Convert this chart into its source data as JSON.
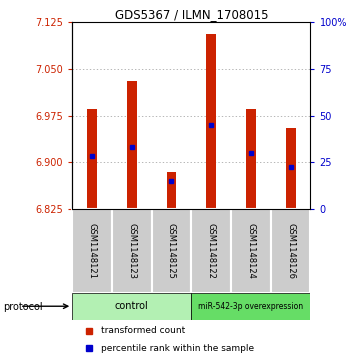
{
  "title": "GDS5367 / ILMN_1708015",
  "samples": [
    "GSM1148121",
    "GSM1148123",
    "GSM1148125",
    "GSM1148122",
    "GSM1148124",
    "GSM1148126"
  ],
  "bar_bottom": 6.825,
  "bar_tops": [
    6.985,
    7.03,
    6.885,
    7.105,
    6.985,
    6.955
  ],
  "percentile_values": [
    6.91,
    6.925,
    6.87,
    6.96,
    6.915,
    6.892
  ],
  "ylim": [
    6.825,
    7.125
  ],
  "yticks": [
    6.825,
    6.9,
    6.975,
    7.05,
    7.125
  ],
  "right_yticks": [
    0,
    25,
    50,
    75,
    100
  ],
  "groups": [
    {
      "label": "control",
      "span": [
        0,
        2
      ],
      "color": "#b3f0b3"
    },
    {
      "label": "miR-542-3p overexpression",
      "span": [
        3,
        5
      ],
      "color": "#66dd66"
    }
  ],
  "bar_color": "#cc2200",
  "percentile_color": "#0000cc",
  "bar_width": 0.25,
  "grid_color": "#999999",
  "left_tick_color": "#cc2200",
  "right_tick_color": "#0000cc",
  "background_sample": "#cccccc",
  "legend_items": [
    {
      "label": "transformed count",
      "color": "#cc2200",
      "marker": "s"
    },
    {
      "label": "percentile rank within the sample",
      "color": "#0000cc",
      "marker": "s"
    }
  ]
}
